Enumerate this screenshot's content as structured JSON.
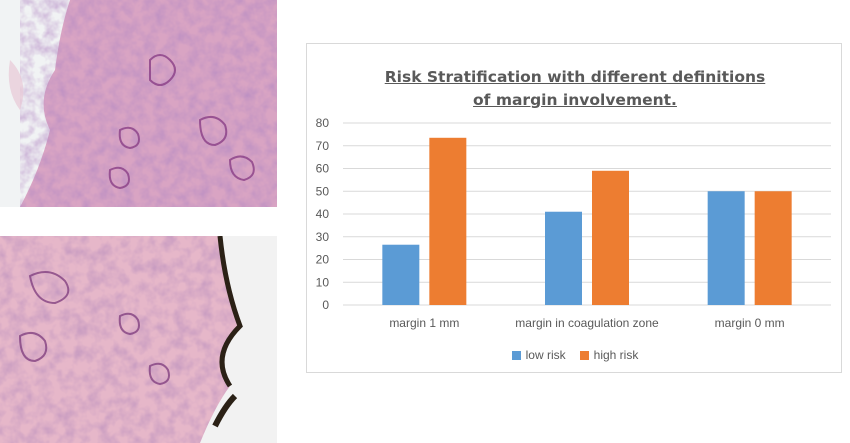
{
  "chart_data": {
    "type": "bar",
    "title": "Risk Stratification with different definitions of margin involvement.",
    "categories": [
      "margin 1 mm",
      "margin in coagulation zone",
      "margin 0 mm"
    ],
    "series": [
      {
        "name": "low risk",
        "color": "#5b9bd5",
        "values": [
          26.5,
          41,
          50
        ]
      },
      {
        "name": "high risk",
        "color": "#ed7d31",
        "values": [
          73.5,
          59,
          50
        ]
      }
    ],
    "ylim": [
      0,
      80
    ],
    "yticks": [
      0,
      10,
      20,
      30,
      40,
      50,
      60,
      70,
      80
    ],
    "grid": true,
    "legend_position": "bottom"
  },
  "images": [
    {
      "name": "histology-top",
      "description_icon": "he-stain-micrograph-icon"
    },
    {
      "name": "histology-bottom",
      "description_icon": "he-stain-micrograph-icon"
    }
  ]
}
